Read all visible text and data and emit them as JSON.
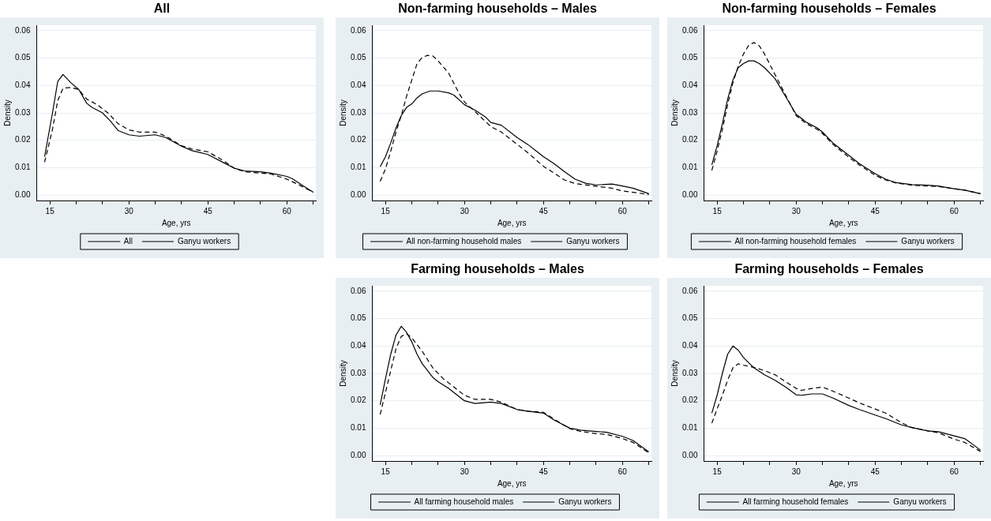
{
  "chart_data": [
    {
      "type": "line",
      "title": "All",
      "xlabel": "Age, yrs",
      "ylabel": "Density",
      "xlim": [
        12.5,
        65.5
      ],
      "xticks": [
        15,
        {
          "value": 20,
          "label": null
        },
        {
          "value": 25,
          "label": null
        },
        30,
        {
          "value": 35,
          "label": null
        },
        {
          "value": 40,
          "label": null
        },
        45,
        {
          "value": 50,
          "label": null
        },
        {
          "value": 55,
          "label": null
        },
        60,
        {
          "value": 65,
          "label": null
        }
      ],
      "ylim": [
        -0.002,
        0.062
      ],
      "yticks": [
        {
          "value": 0,
          "label": "0.00"
        },
        {
          "value": 0.01,
          "label": "0.01"
        },
        {
          "value": 0.02,
          "label": "0.02"
        },
        {
          "value": 0.03,
          "label": "0.03"
        },
        {
          "value": 0.04,
          "label": "0.04"
        },
        {
          "value": 0.05,
          "label": "0.05"
        },
        {
          "value": 0.06,
          "label": "0.06"
        }
      ],
      "grid": "y",
      "legend": "bottom",
      "marker": "none",
      "series": [
        {
          "name": "All",
          "color": "#000000",
          "line_style": "solid",
          "x": [
            14,
            15.5,
            16.5,
            17.5,
            19,
            20.5,
            22,
            23,
            25,
            26.5,
            28,
            30,
            32,
            35,
            37,
            40,
            42,
            45,
            48,
            50,
            52,
            55,
            57,
            60,
            61,
            63,
            65
          ],
          "values": [
            0.014,
            0.03,
            0.0415,
            0.044,
            0.041,
            0.0385,
            0.0335,
            0.032,
            0.03,
            0.027,
            0.0235,
            0.022,
            0.0215,
            0.022,
            0.021,
            0.0178,
            0.0162,
            0.0148,
            0.0118,
            0.0098,
            0.0088,
            0.0085,
            0.008,
            0.0068,
            0.006,
            0.0035,
            0.001
          ]
        },
        {
          "name": "Ganyu workers",
          "color": "#000000",
          "line_style": "dashed",
          "x": [
            14,
            15.5,
            16.5,
            17.5,
            19,
            20.5,
            22,
            24,
            26,
            28,
            30,
            32,
            35,
            37,
            40,
            42,
            45,
            48,
            50,
            52,
            55,
            57,
            60,
            62,
            65
          ],
          "values": [
            0.012,
            0.024,
            0.0345,
            0.039,
            0.0393,
            0.0385,
            0.035,
            0.033,
            0.03,
            0.026,
            0.0238,
            0.023,
            0.023,
            0.0215,
            0.018,
            0.0168,
            0.0158,
            0.0125,
            0.0098,
            0.0085,
            0.008,
            0.0077,
            0.0058,
            0.004,
            0.001
          ]
        }
      ]
    },
    {
      "type": "line",
      "title": "Non-farming households – Males",
      "xlabel": "Age, yrs",
      "ylabel": "Density",
      "xlim": [
        12.5,
        65.5
      ],
      "xticks": [
        15,
        {
          "value": 20,
          "label": null
        },
        {
          "value": 25,
          "label": null
        },
        30,
        {
          "value": 35,
          "label": null
        },
        {
          "value": 40,
          "label": null
        },
        45,
        {
          "value": 50,
          "label": null
        },
        {
          "value": 55,
          "label": null
        },
        60,
        {
          "value": 65,
          "label": null
        }
      ],
      "ylim": [
        -0.002,
        0.062
      ],
      "yticks": [
        {
          "value": 0,
          "label": "0.00"
        },
        {
          "value": 0.01,
          "label": "0.01"
        },
        {
          "value": 0.02,
          "label": "0.02"
        },
        {
          "value": 0.03,
          "label": "0.03"
        },
        {
          "value": 0.04,
          "label": "0.04"
        },
        {
          "value": 0.05,
          "label": "0.05"
        },
        {
          "value": 0.06,
          "label": "0.06"
        }
      ],
      "grid": "y",
      "legend": "bottom",
      "marker": "none",
      "series": [
        {
          "name": "All non-farming household males",
          "color": "#000000",
          "line_style": "solid",
          "x": [
            14,
            15,
            16,
            17,
            18,
            19,
            20,
            21,
            22,
            23.5,
            25,
            27,
            28,
            30,
            32,
            34,
            35,
            37,
            40,
            42,
            44,
            45,
            47,
            49,
            51,
            53,
            55,
            58,
            60,
            62,
            65
          ],
          "values": [
            0.0103,
            0.014,
            0.019,
            0.0245,
            0.029,
            0.032,
            0.0333,
            0.0355,
            0.037,
            0.038,
            0.038,
            0.0373,
            0.0365,
            0.033,
            0.031,
            0.0285,
            0.0265,
            0.0255,
            0.021,
            0.0185,
            0.0155,
            0.014,
            0.0115,
            0.0085,
            0.0058,
            0.0043,
            0.0037,
            0.004,
            0.0033,
            0.0025,
            0.0005
          ]
        },
        {
          "name": "Ganyu workers",
          "color": "#000000",
          "line_style": "dashed",
          "x": [
            14,
            15,
            16,
            17,
            18,
            19,
            20,
            21,
            22,
            23,
            24,
            25,
            27,
            29,
            30,
            32,
            35,
            37,
            40,
            42,
            45,
            47,
            49,
            51,
            55,
            58,
            60,
            62,
            65
          ],
          "values": [
            0.005,
            0.0095,
            0.016,
            0.023,
            0.029,
            0.036,
            0.042,
            0.048,
            0.0503,
            0.051,
            0.0508,
            0.049,
            0.0445,
            0.037,
            0.034,
            0.0305,
            0.025,
            0.023,
            0.0185,
            0.0155,
            0.0105,
            0.008,
            0.0055,
            0.0042,
            0.0032,
            0.0025,
            0.0015,
            0.001,
            0.0002
          ]
        }
      ]
    },
    {
      "type": "line",
      "title": "Non-farming households – Females",
      "xlabel": "Age, yrs",
      "ylabel": "Density",
      "xlim": [
        12.5,
        65.5
      ],
      "xticks": [
        15,
        {
          "value": 20,
          "label": null
        },
        {
          "value": 25,
          "label": null
        },
        30,
        {
          "value": 35,
          "label": null
        },
        {
          "value": 40,
          "label": null
        },
        45,
        {
          "value": 50,
          "label": null
        },
        {
          "value": 55,
          "label": null
        },
        60,
        {
          "value": 65,
          "label": null
        }
      ],
      "ylim": [
        -0.002,
        0.062
      ],
      "yticks": [
        {
          "value": 0,
          "label": "0.00"
        },
        {
          "value": 0.01,
          "label": "0.01"
        },
        {
          "value": 0.02,
          "label": "0.02"
        },
        {
          "value": 0.03,
          "label": "0.03"
        },
        {
          "value": 0.04,
          "label": "0.04"
        },
        {
          "value": 0.05,
          "label": "0.05"
        },
        {
          "value": 0.06,
          "label": "0.06"
        }
      ],
      "grid": "y",
      "legend": "bottom",
      "marker": "none",
      "series": [
        {
          "name": "All non-farming household females",
          "color": "#000000",
          "line_style": "solid",
          "x": [
            14,
            15,
            16,
            17,
            18,
            19,
            20,
            21,
            22,
            23,
            24,
            26,
            28,
            30,
            32,
            34,
            35,
            37,
            40,
            42,
            45,
            47,
            49,
            52,
            55,
            57,
            60,
            62,
            65
          ],
          "values": [
            0.011,
            0.018,
            0.026,
            0.035,
            0.042,
            0.0465,
            0.048,
            0.049,
            0.049,
            0.048,
            0.0465,
            0.0425,
            0.036,
            0.0295,
            0.0265,
            0.0245,
            0.023,
            0.019,
            0.0145,
            0.0115,
            0.0078,
            0.0058,
            0.0045,
            0.0038,
            0.0036,
            0.0033,
            0.0023,
            0.0018,
            0.0005
          ]
        },
        {
          "name": "Ganyu workers",
          "color": "#000000",
          "line_style": "dashed",
          "x": [
            14,
            15,
            16,
            17,
            18,
            19,
            20,
            21,
            22,
            23,
            24,
            26,
            28,
            30,
            32,
            34,
            35,
            37,
            40,
            42,
            45,
            47,
            49,
            52,
            55,
            57,
            60,
            62,
            65
          ],
          "values": [
            0.009,
            0.016,
            0.024,
            0.033,
            0.041,
            0.047,
            0.0515,
            0.0547,
            0.0557,
            0.0545,
            0.0515,
            0.044,
            0.0365,
            0.029,
            0.026,
            0.024,
            0.0225,
            0.0185,
            0.0138,
            0.011,
            0.0072,
            0.0055,
            0.0044,
            0.0036,
            0.0033,
            0.0031,
            0.0023,
            0.0018,
            0.0005
          ]
        }
      ]
    },
    {
      "type": "line",
      "title": "Farming households – Males",
      "xlabel": "Age, yrs",
      "ylabel": "Density",
      "xlim": [
        12.5,
        65.5
      ],
      "xticks": [
        15,
        {
          "value": 20,
          "label": null
        },
        {
          "value": 25,
          "label": null
        },
        30,
        {
          "value": 35,
          "label": null
        },
        {
          "value": 40,
          "label": null
        },
        45,
        {
          "value": 50,
          "label": null
        },
        {
          "value": 55,
          "label": null
        },
        60,
        {
          "value": 65,
          "label": null
        }
      ],
      "ylim": [
        -0.002,
        0.062
      ],
      "yticks": [
        {
          "value": 0,
          "label": "0.00"
        },
        {
          "value": 0.01,
          "label": "0.01"
        },
        {
          "value": 0.02,
          "label": "0.02"
        },
        {
          "value": 0.03,
          "label": "0.03"
        },
        {
          "value": 0.04,
          "label": "0.04"
        },
        {
          "value": 0.05,
          "label": "0.05"
        },
        {
          "value": 0.06,
          "label": "0.06"
        }
      ],
      "grid": "y",
      "legend": "bottom",
      "marker": "none",
      "series": [
        {
          "name": "All farming household males",
          "color": "#000000",
          "line_style": "solid",
          "x": [
            14,
            15,
            16,
            17,
            18,
            19,
            20,
            21,
            22,
            24,
            25,
            27,
            30,
            32,
            35,
            37,
            40,
            42,
            45,
            47,
            50,
            52,
            55,
            57,
            60,
            62,
            65
          ],
          "values": [
            0.0185,
            0.028,
            0.037,
            0.044,
            0.0472,
            0.045,
            0.0415,
            0.037,
            0.0335,
            0.0285,
            0.027,
            0.0245,
            0.02,
            0.019,
            0.0195,
            0.019,
            0.0168,
            0.0162,
            0.0155,
            0.013,
            0.01,
            0.0093,
            0.0088,
            0.0085,
            0.007,
            0.0055,
            0.0013
          ]
        },
        {
          "name": "Ganyu workers",
          "color": "#000000",
          "line_style": "dashed",
          "x": [
            14,
            15,
            16,
            17,
            18,
            19,
            20,
            21,
            22,
            24,
            26,
            28,
            30,
            32,
            35,
            37,
            40,
            42,
            45,
            47,
            50,
            52,
            55,
            57,
            60,
            62,
            65
          ],
          "values": [
            0.015,
            0.023,
            0.031,
            0.039,
            0.0435,
            0.0445,
            0.043,
            0.0405,
            0.038,
            0.032,
            0.028,
            0.025,
            0.022,
            0.0205,
            0.0205,
            0.0195,
            0.0168,
            0.0162,
            0.0158,
            0.0133,
            0.0098,
            0.0088,
            0.008,
            0.0077,
            0.0062,
            0.0048,
            0.001
          ]
        }
      ]
    },
    {
      "type": "line",
      "title": "Farming households – Females",
      "xlabel": "Age, yrs",
      "ylabel": "Density",
      "xlim": [
        12.5,
        65.5
      ],
      "xticks": [
        15,
        {
          "value": 20,
          "label": null
        },
        {
          "value": 25,
          "label": null
        },
        30,
        {
          "value": 35,
          "label": null
        },
        {
          "value": 40,
          "label": null
        },
        45,
        {
          "value": 50,
          "label": null
        },
        {
          "value": 55,
          "label": null
        },
        60,
        {
          "value": 65,
          "label": null
        }
      ],
      "ylim": [
        -0.002,
        0.062
      ],
      "yticks": [
        {
          "value": 0,
          "label": "0.00"
        },
        {
          "value": 0.01,
          "label": "0.01"
        },
        {
          "value": 0.02,
          "label": "0.02"
        },
        {
          "value": 0.03,
          "label": "0.03"
        },
        {
          "value": 0.04,
          "label": "0.04"
        },
        {
          "value": 0.05,
          "label": "0.05"
        },
        {
          "value": 0.06,
          "label": "0.06"
        }
      ],
      "grid": "y",
      "legend": "bottom",
      "marker": "none",
      "series": [
        {
          "name": "All farming household females",
          "color": "#000000",
          "line_style": "solid",
          "x": [
            14,
            15,
            16,
            17,
            18,
            19,
            20,
            22,
            24,
            26,
            28,
            30,
            31,
            33,
            35,
            37,
            40,
            42,
            45,
            47,
            50,
            52,
            55,
            57,
            60,
            62,
            65
          ],
          "values": [
            0.0155,
            0.022,
            0.03,
            0.037,
            0.04,
            0.0385,
            0.0358,
            0.032,
            0.0295,
            0.0275,
            0.025,
            0.0222,
            0.022,
            0.0225,
            0.0225,
            0.021,
            0.0183,
            0.0168,
            0.0148,
            0.0135,
            0.0112,
            0.0102,
            0.009,
            0.0087,
            0.0072,
            0.0062,
            0.002
          ]
        },
        {
          "name": "Ganyu workers",
          "color": "#000000",
          "line_style": "dashed",
          "x": [
            14,
            15,
            16,
            17,
            18,
            19,
            20,
            22,
            24,
            26,
            28,
            30,
            31,
            33,
            35,
            37,
            40,
            42,
            45,
            47,
            50,
            52,
            55,
            57,
            60,
            62,
            65
          ],
          "values": [
            0.0118,
            0.017,
            0.022,
            0.0275,
            0.032,
            0.0335,
            0.033,
            0.0322,
            0.031,
            0.0295,
            0.027,
            0.0245,
            0.0238,
            0.0245,
            0.025,
            0.0235,
            0.021,
            0.0192,
            0.017,
            0.0155,
            0.012,
            0.0102,
            0.009,
            0.0083,
            0.006,
            0.0048,
            0.0015
          ]
        }
      ]
    }
  ]
}
